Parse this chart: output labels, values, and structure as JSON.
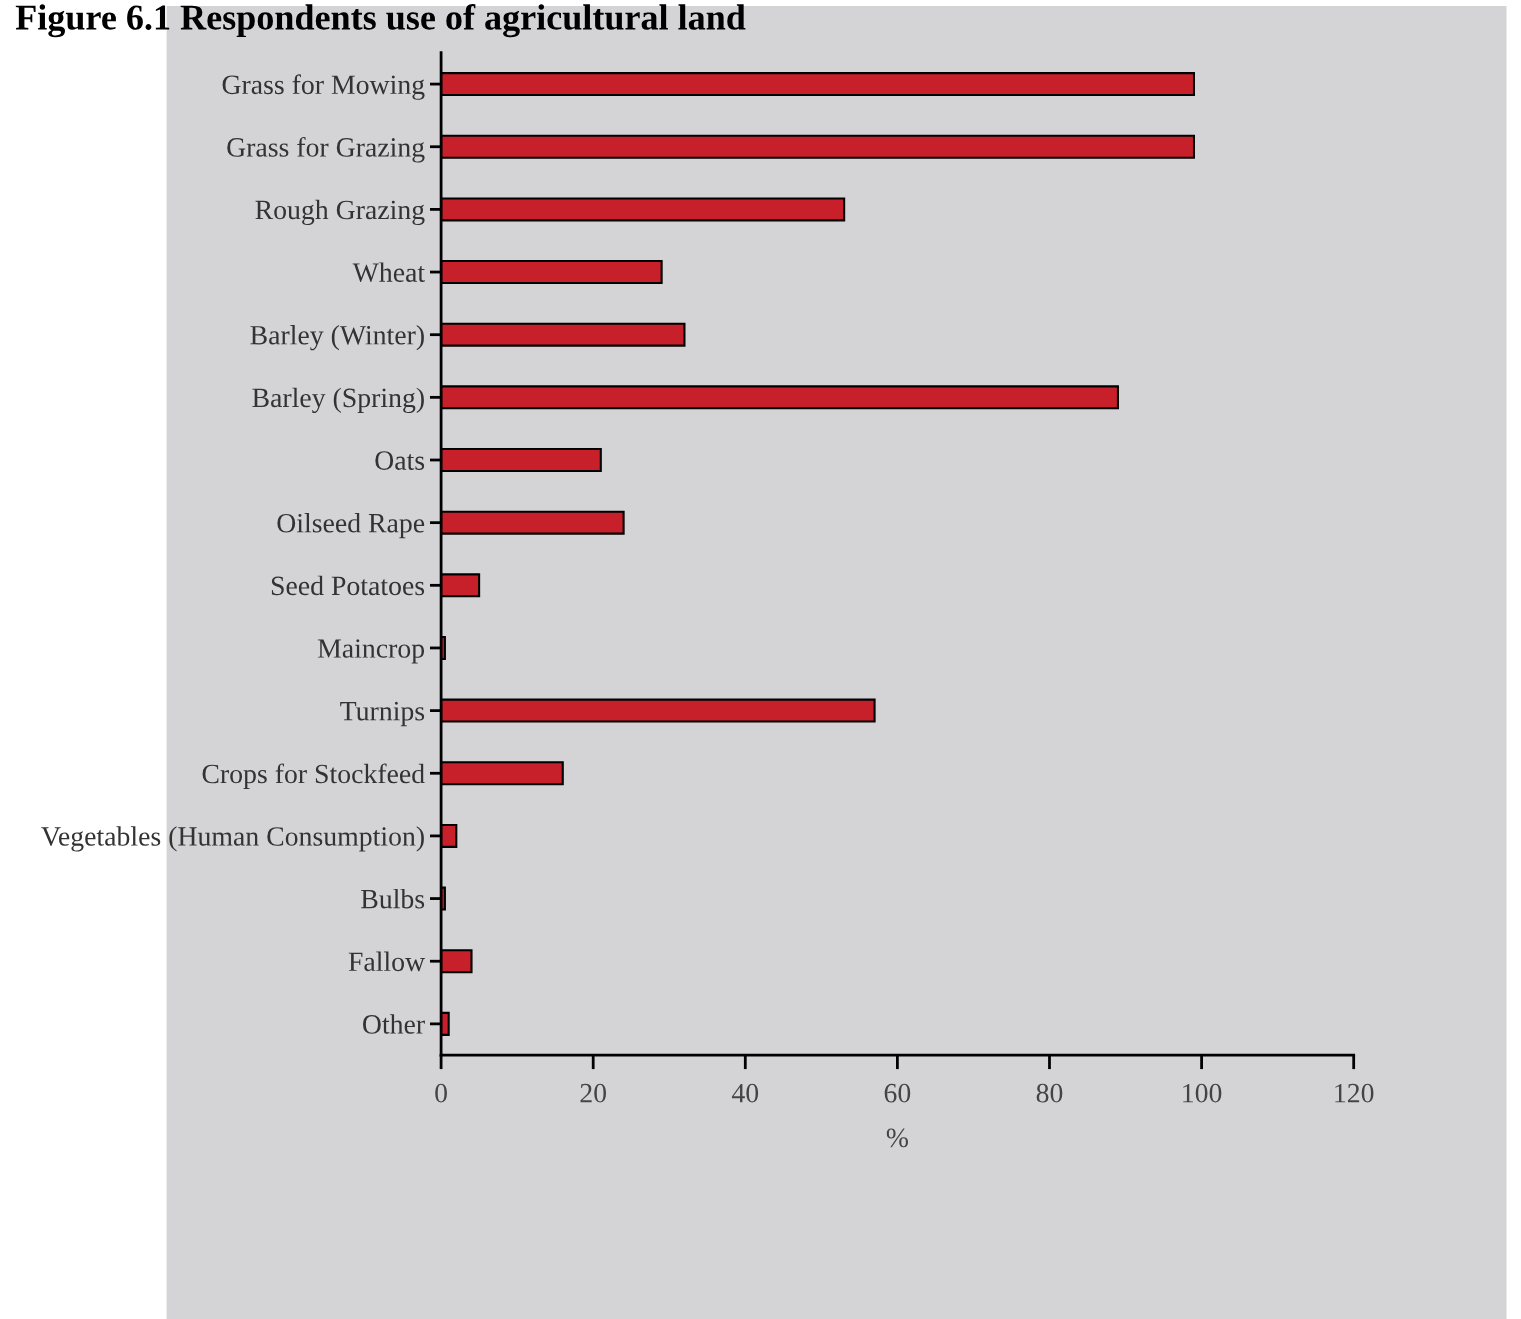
{
  "chart_data": {
    "type": "bar",
    "orientation": "horizontal",
    "title": "Figure 6.1 Respondents use of agricultural land",
    "xlabel": "%",
    "categories": [
      "Grass for Mowing",
      "Grass for Grazing",
      "Rough Grazing",
      "Wheat",
      "Barley (Winter)",
      "Barley (Spring)",
      "Oats",
      "Oilseed Rape",
      "Seed Potatoes",
      "Maincrop",
      "Turnips",
      "Crops for Stockfeed",
      "Vegetables (Human Consumption)",
      "Bulbs",
      "Fallow",
      "Other"
    ],
    "values": [
      99,
      99,
      53,
      29,
      32,
      89,
      21,
      24,
      5,
      0.5,
      57,
      16,
      2,
      0.5,
      4,
      1
    ],
    "color": "#c8202a",
    "xlim": [
      0,
      120
    ],
    "xticks": [
      0,
      20,
      40,
      60,
      80,
      100,
      120
    ],
    "grid": false,
    "legend": false
  }
}
